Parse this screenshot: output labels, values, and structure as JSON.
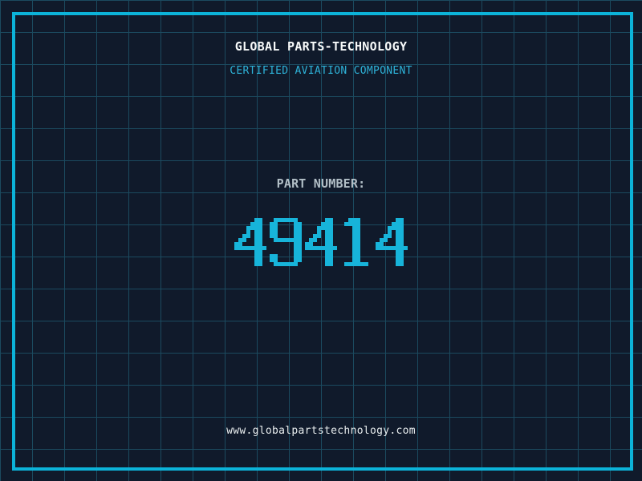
{
  "header": {
    "title": "GLOBAL PARTS-TECHNOLOGY",
    "subtitle": "CERTIFIED AVIATION COMPONENT"
  },
  "part": {
    "label": "PART NUMBER:",
    "number": "49414"
  },
  "footer": {
    "url": "www.globalpartstechnology.com"
  },
  "colors": {
    "background": "#101a2b",
    "grid_line": "#1b4a5f",
    "frame": "#0cb3d9",
    "title_text": "#f8fafa",
    "accent_text": "#2eb3d9",
    "label_text": "#b2bfc7",
    "number": "#17b4da",
    "url_text": "#e8edee"
  }
}
